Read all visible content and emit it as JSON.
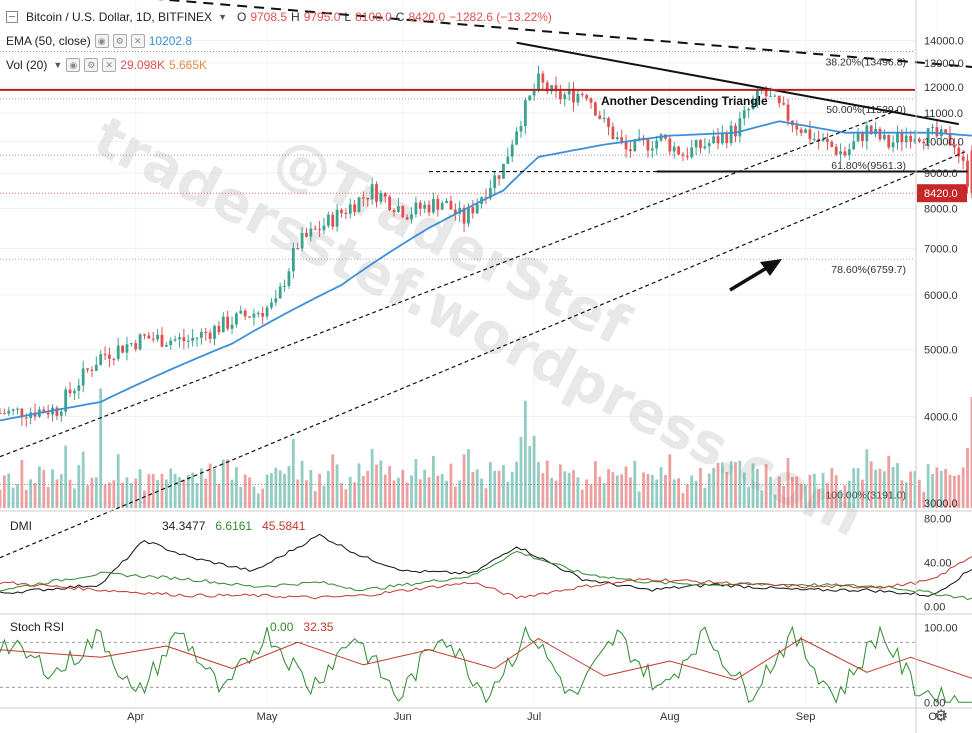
{
  "header": {
    "symbol": "Bitcoin / U.S. Dollar, 1D, BITFINEX",
    "open_label": "O",
    "open": "9708.5",
    "high_label": "H",
    "high": "9795.0",
    "low_label": "L",
    "low": "8100.0",
    "close_label": "C",
    "close": "8420.0",
    "change": "−1282.6 (−13.22%)"
  },
  "indicators": {
    "ema_label": "EMA (50, close)",
    "ema_value": "10202.8",
    "vol_label": "Vol (20)",
    "vol_value1": "29.098K",
    "vol_value2": "5.665K",
    "dmi_label": "DMI",
    "dmi_v1": "34.3477",
    "dmi_v2": "6.6161",
    "dmi_v3": "45.5841",
    "stoch_label": "Stoch RSI",
    "stoch_v1": "0.00",
    "stoch_v2": "32.35"
  },
  "watermark": [
    "tradersstef.wordpress.com",
    "@TraderStef"
  ],
  "annotation": "Another Descending Triangle",
  "price_tag": "8420.0",
  "colors": {
    "up": "#3aa38f",
    "down": "#e05050",
    "ema": "#3b8fd8",
    "resistance": "#b22222",
    "dmi_adx": "#111111",
    "dmi_plus": "#2e8b2e",
    "dmi_minus": "#c0392b"
  },
  "chart_data": [
    {
      "type": "candlestick",
      "title": "Bitcoin / U.S. Dollar, 1D, BITFINEX",
      "x_ticks": [
        "Apr",
        "May",
        "Jun",
        "Jul",
        "Aug",
        "Sep",
        "Oct"
      ],
      "x_range_days": [
        -23,
        186
      ],
      "ylim": [
        2950,
        14600
      ],
      "y_scale": "log",
      "y_ticks": [
        3000.0,
        4000.0,
        5000.0,
        6000.0,
        7000.0,
        8000.0,
        9000.0,
        10000.0,
        11000.0,
        12000.0,
        13000.0,
        14000.0
      ],
      "fib_levels": [
        {
          "label": "38.20%(13496.8)",
          "value": 13496.8
        },
        {
          "label": "50.00%(11529.0)",
          "value": 11529.0
        },
        {
          "label": "61.80%(9561.3)",
          "value": 9561.3
        },
        {
          "label": "78.60%(6759.7)",
          "value": 6759.7
        },
        {
          "label": "100.00%(3191.0)",
          "value": 3191.0
        }
      ],
      "last_price": 8420.0,
      "close_path": [
        [
          -23,
          4050
        ],
        [
          -10,
          4100
        ],
        [
          0,
          4900
        ],
        [
          10,
          5200
        ],
        [
          20,
          5150
        ],
        [
          30,
          5500
        ],
        [
          40,
          5800
        ],
        [
          45,
          7100
        ],
        [
          55,
          7900
        ],
        [
          62,
          8500
        ],
        [
          70,
          7900
        ],
        [
          78,
          8200
        ],
        [
          83,
          7700
        ],
        [
          92,
          9200
        ],
        [
          95,
          10500
        ],
        [
          100,
          12200
        ],
        [
          104,
          11600
        ],
        [
          111,
          11800
        ],
        [
          115,
          10600
        ],
        [
          120,
          9700
        ],
        [
          128,
          10100
        ],
        [
          133,
          9600
        ],
        [
          140,
          10000
        ],
        [
          145,
          10400
        ],
        [
          151,
          11800
        ],
        [
          158,
          10700
        ],
        [
          163,
          10100
        ],
        [
          170,
          9600
        ],
        [
          175,
          10400
        ],
        [
          180,
          9900
        ],
        [
          185,
          10300
        ],
        [
          190,
          10200
        ],
        [
          195,
          10000
        ],
        [
          199,
          8420
        ]
      ],
      "ema_path": [
        [
          -23,
          3950
        ],
        [
          0,
          4200
        ],
        [
          30,
          5100
        ],
        [
          55,
          6200
        ],
        [
          75,
          7500
        ],
        [
          92,
          8500
        ],
        [
          100,
          9500
        ],
        [
          115,
          9900
        ],
        [
          130,
          10200
        ],
        [
          145,
          10300
        ],
        [
          155,
          10700
        ],
        [
          170,
          10300
        ],
        [
          190,
          10300
        ],
        [
          199,
          10200
        ]
      ],
      "volume_scale_max": 30,
      "trendlines": [
        {
          "name": "long descending dashed",
          "style": "dashed",
          "from": [
            -23,
            16800
          ],
          "to": [
            220,
            12500
          ]
        },
        {
          "name": "triangle upper",
          "style": "solid",
          "from": [
            95,
            13900
          ],
          "to": [
            196,
            10600
          ]
        },
        {
          "name": "triangle base",
          "style": "solid",
          "from": [
            127,
            9050
          ],
          "to": [
            198,
            9050
          ]
        },
        {
          "name": "prior base",
          "style": "dashed",
          "from": [
            75,
            9050
          ],
          "to": [
            128,
            9050
          ]
        },
        {
          "name": "rising support 1",
          "style": "dashed",
          "from": [
            -23,
            3500
          ],
          "to": [
            182,
            11100
          ]
        },
        {
          "name": "rising support 2",
          "style": "dashed",
          "from": [
            -23,
            2500
          ],
          "to": [
            198,
            9700
          ]
        },
        {
          "name": "horizontal resistance",
          "style": "solid",
          "value": 11880
        }
      ]
    },
    {
      "type": "line",
      "title": "DMI",
      "ylim": [
        -5,
        85
      ],
      "y_ticks": [
        0.0,
        40.0,
        80.0
      ],
      "series": [
        {
          "name": "ADX",
          "points": [
            [
              -23,
              12
            ],
            [
              0,
              20
            ],
            [
              10,
              60
            ],
            [
              20,
              45
            ],
            [
              35,
              32
            ],
            [
              50,
              65
            ],
            [
              60,
              45
            ],
            [
              70,
              32
            ],
            [
              85,
              30
            ],
            [
              95,
              55
            ],
            [
              110,
              25
            ],
            [
              125,
              15
            ],
            [
              140,
              20
            ],
            [
              160,
              15
            ],
            [
              175,
              15
            ],
            [
              190,
              10
            ],
            [
              199,
              34
            ]
          ]
        },
        {
          "name": "+DI",
          "points": [
            [
              -23,
              15
            ],
            [
              0,
              30
            ],
            [
              20,
              25
            ],
            [
              35,
              18
            ],
            [
              50,
              22
            ],
            [
              60,
              15
            ],
            [
              70,
              20
            ],
            [
              85,
              28
            ],
            [
              95,
              50
            ],
            [
              110,
              30
            ],
            [
              125,
              22
            ],
            [
              140,
              20
            ],
            [
              160,
              20
            ],
            [
              180,
              18
            ],
            [
              190,
              12
            ],
            [
              199,
              7
            ]
          ]
        },
        {
          "name": "-DI",
          "points": [
            [
              -23,
              22
            ],
            [
              0,
              15
            ],
            [
              20,
              10
            ],
            [
              35,
              10
            ],
            [
              50,
              8
            ],
            [
              60,
              10
            ],
            [
              70,
              15
            ],
            [
              85,
              22
            ],
            [
              95,
              8
            ],
            [
              110,
              18
            ],
            [
              125,
              25
            ],
            [
              140,
              22
            ],
            [
              160,
              18
            ],
            [
              180,
              18
            ],
            [
              190,
              24
            ],
            [
              199,
              46
            ]
          ]
        }
      ]
    },
    {
      "type": "line",
      "title": "Stoch RSI",
      "ylim": [
        -5,
        115
      ],
      "y_ticks": [
        0.0,
        100.0
      ],
      "levels": [
        80,
        20
      ],
      "series": [
        {
          "name": "K",
          "points": [
            [
              -23,
              80
            ],
            [
              -10,
              40
            ],
            [
              0,
              90
            ],
            [
              8,
              5
            ],
            [
              18,
              95
            ],
            [
              28,
              10
            ],
            [
              38,
              95
            ],
            [
              48,
              20
            ],
            [
              58,
              90
            ],
            [
              68,
              5
            ],
            [
              78,
              95
            ],
            [
              88,
              10
            ],
            [
              98,
              95
            ],
            [
              108,
              5
            ],
            [
              118,
              90
            ],
            [
              128,
              15
            ],
            [
              138,
              95
            ],
            [
              148,
              10
            ],
            [
              158,
              90
            ],
            [
              168,
              5
            ],
            [
              178,
              95
            ],
            [
              186,
              20
            ],
            [
              192,
              5
            ],
            [
              199,
              0
            ]
          ]
        },
        {
          "name": "D",
          "points": [
            [
              -23,
              70
            ],
            [
              0,
              60
            ],
            [
              15,
              75
            ],
            [
              30,
              45
            ],
            [
              45,
              80
            ],
            [
              60,
              50
            ],
            [
              75,
              70
            ],
            [
              90,
              45
            ],
            [
              100,
              85
            ],
            [
              115,
              35
            ],
            [
              130,
              55
            ],
            [
              145,
              30
            ],
            [
              160,
              85
            ],
            [
              175,
              40
            ],
            [
              185,
              60
            ],
            [
              199,
              32
            ]
          ]
        }
      ]
    }
  ]
}
